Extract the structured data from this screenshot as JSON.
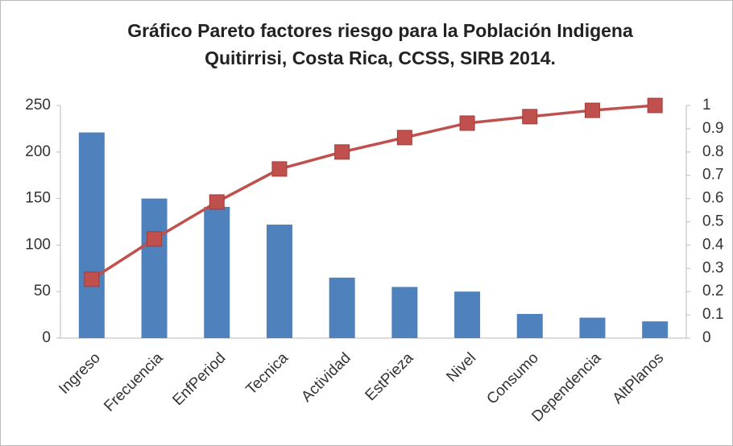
{
  "chart_data": {
    "type": "pareto",
    "title": [
      "Gráfico Pareto factores riesgo para la Población  Indigena",
      "Quitirrisi, Costa Rica, CCSS, SIRB 2014."
    ],
    "categories": [
      "Ingreso",
      "Frecuencia",
      "EnfPeriod",
      "Tecnica",
      "Actividad",
      "EstPieza",
      "Nivel",
      "Consumo",
      "Dependencia",
      "AltPlanos"
    ],
    "series": [
      {
        "type": "bar",
        "color": "#4f81bd",
        "values": [
          221,
          150,
          141,
          122,
          65,
          55,
          50,
          26,
          22,
          18
        ]
      },
      {
        "type": "line",
        "axis": "y2",
        "color": "#c0504d",
        "values": [
          0.253,
          0.426,
          0.585,
          0.727,
          0.8,
          0.862,
          0.924,
          0.952,
          0.979,
          1
        ]
      }
    ],
    "ylim": [
      0,
      250
    ],
    "yticks": [
      0,
      50,
      100,
      150,
      200,
      250
    ],
    "y2lim": [
      0,
      1
    ],
    "y2ticks": [
      0,
      0.1,
      0.2,
      0.3,
      0.4,
      0.5,
      0.6,
      0.7,
      0.8,
      0.9,
      1
    ]
  }
}
